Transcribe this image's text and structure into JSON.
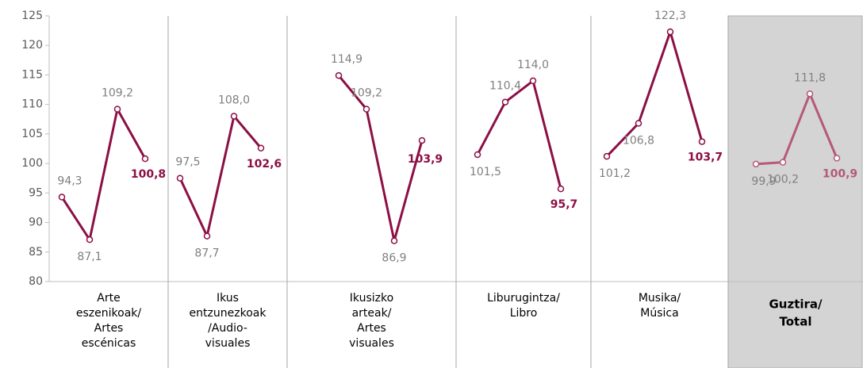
{
  "chart_data": {
    "type": "line",
    "categories": [
      [
        "Arte",
        "eszenikoak/",
        "Artes",
        "escénicas"
      ],
      [
        "Ikus",
        "entzunezkoak",
        "/Audio-",
        "visuales"
      ],
      [
        "Ikusizko",
        "arteak/",
        "Artes",
        "visuales"
      ],
      [
        "Liburugintza/",
        "Libro"
      ],
      [
        "Musika/",
        "Música"
      ],
      [
        "Guztira/",
        "Total"
      ]
    ],
    "values": [
      [
        94.3,
        87.1,
        109.2,
        100.8
      ],
      [
        97.5,
        87.7,
        108.0,
        102.6
      ],
      [
        114.9,
        109.2,
        86.9,
        103.9
      ],
      [
        101.5,
        110.4,
        114.0,
        95.7
      ],
      [
        101.2,
        106.8,
        122.3,
        103.7
      ],
      [
        99.9,
        100.2,
        111.8,
        100.9
      ]
    ],
    "value_labels": [
      [
        "94,3",
        "87,1",
        "109,2",
        "100,8"
      ],
      [
        "97,5",
        "87,7",
        "108,0",
        "102,6"
      ],
      [
        "114,9",
        "109,2",
        "86,9",
        "103,9"
      ],
      [
        "101,5",
        "110,4",
        "114,0",
        "95,7"
      ],
      [
        "101,2",
        "106,8",
        "122,3",
        "103,7"
      ],
      [
        "99,9",
        "100,2",
        "111,8",
        "100,9"
      ]
    ],
    "colors": [
      "#8c0f45",
      "#8c0f45",
      "#8c0f45",
      "#8c0f45",
      "#8c0f45",
      "#b5587a"
    ],
    "highlight_color": "#d4d4d4",
    "ylim": [
      80,
      125
    ],
    "yticks": [
      80,
      85,
      90,
      95,
      100,
      105,
      110,
      115,
      120,
      125
    ]
  }
}
